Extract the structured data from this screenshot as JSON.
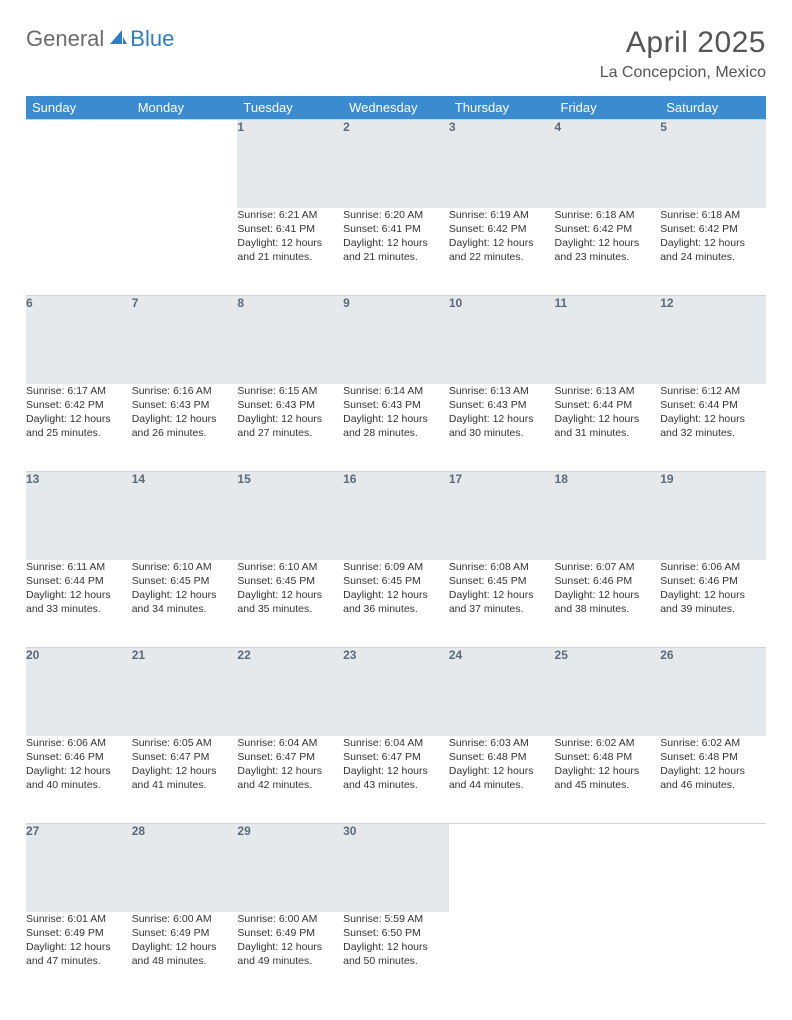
{
  "logo": {
    "gray": "General",
    "blue": "Blue"
  },
  "title": "April 2025",
  "location": "La Concepcion, Mexico",
  "colors": {
    "header_bg": "#3b8bd0",
    "header_text": "#ffffff",
    "daynum_bg": "#e6e9ec",
    "daynum_text": "#5c6a78",
    "logo_gray": "#6b6b6b",
    "logo_blue": "#2b7dc4"
  },
  "weekdays": [
    "Sunday",
    "Monday",
    "Tuesday",
    "Wednesday",
    "Thursday",
    "Friday",
    "Saturday"
  ],
  "weeks": [
    {
      "nums": [
        "",
        "",
        "1",
        "2",
        "3",
        "4",
        "5"
      ],
      "cells": [
        {
          "empty": true
        },
        {
          "empty": true
        },
        {
          "sunrise": "Sunrise: 6:21 AM",
          "sunset": "Sunset: 6:41 PM",
          "day1": "Daylight: 12 hours",
          "day2": "and 21 minutes."
        },
        {
          "sunrise": "Sunrise: 6:20 AM",
          "sunset": "Sunset: 6:41 PM",
          "day1": "Daylight: 12 hours",
          "day2": "and 21 minutes."
        },
        {
          "sunrise": "Sunrise: 6:19 AM",
          "sunset": "Sunset: 6:42 PM",
          "day1": "Daylight: 12 hours",
          "day2": "and 22 minutes."
        },
        {
          "sunrise": "Sunrise: 6:18 AM",
          "sunset": "Sunset: 6:42 PM",
          "day1": "Daylight: 12 hours",
          "day2": "and 23 minutes."
        },
        {
          "sunrise": "Sunrise: 6:18 AM",
          "sunset": "Sunset: 6:42 PM",
          "day1": "Daylight: 12 hours",
          "day2": "and 24 minutes."
        }
      ]
    },
    {
      "nums": [
        "6",
        "7",
        "8",
        "9",
        "10",
        "11",
        "12"
      ],
      "cells": [
        {
          "sunrise": "Sunrise: 6:17 AM",
          "sunset": "Sunset: 6:42 PM",
          "day1": "Daylight: 12 hours",
          "day2": "and 25 minutes."
        },
        {
          "sunrise": "Sunrise: 6:16 AM",
          "sunset": "Sunset: 6:43 PM",
          "day1": "Daylight: 12 hours",
          "day2": "and 26 minutes."
        },
        {
          "sunrise": "Sunrise: 6:15 AM",
          "sunset": "Sunset: 6:43 PM",
          "day1": "Daylight: 12 hours",
          "day2": "and 27 minutes."
        },
        {
          "sunrise": "Sunrise: 6:14 AM",
          "sunset": "Sunset: 6:43 PM",
          "day1": "Daylight: 12 hours",
          "day2": "and 28 minutes."
        },
        {
          "sunrise": "Sunrise: 6:13 AM",
          "sunset": "Sunset: 6:43 PM",
          "day1": "Daylight: 12 hours",
          "day2": "and 30 minutes."
        },
        {
          "sunrise": "Sunrise: 6:13 AM",
          "sunset": "Sunset: 6:44 PM",
          "day1": "Daylight: 12 hours",
          "day2": "and 31 minutes."
        },
        {
          "sunrise": "Sunrise: 6:12 AM",
          "sunset": "Sunset: 6:44 PM",
          "day1": "Daylight: 12 hours",
          "day2": "and 32 minutes."
        }
      ]
    },
    {
      "nums": [
        "13",
        "14",
        "15",
        "16",
        "17",
        "18",
        "19"
      ],
      "cells": [
        {
          "sunrise": "Sunrise: 6:11 AM",
          "sunset": "Sunset: 6:44 PM",
          "day1": "Daylight: 12 hours",
          "day2": "and 33 minutes."
        },
        {
          "sunrise": "Sunrise: 6:10 AM",
          "sunset": "Sunset: 6:45 PM",
          "day1": "Daylight: 12 hours",
          "day2": "and 34 minutes."
        },
        {
          "sunrise": "Sunrise: 6:10 AM",
          "sunset": "Sunset: 6:45 PM",
          "day1": "Daylight: 12 hours",
          "day2": "and 35 minutes."
        },
        {
          "sunrise": "Sunrise: 6:09 AM",
          "sunset": "Sunset: 6:45 PM",
          "day1": "Daylight: 12 hours",
          "day2": "and 36 minutes."
        },
        {
          "sunrise": "Sunrise: 6:08 AM",
          "sunset": "Sunset: 6:45 PM",
          "day1": "Daylight: 12 hours",
          "day2": "and 37 minutes."
        },
        {
          "sunrise": "Sunrise: 6:07 AM",
          "sunset": "Sunset: 6:46 PM",
          "day1": "Daylight: 12 hours",
          "day2": "and 38 minutes."
        },
        {
          "sunrise": "Sunrise: 6:06 AM",
          "sunset": "Sunset: 6:46 PM",
          "day1": "Daylight: 12 hours",
          "day2": "and 39 minutes."
        }
      ]
    },
    {
      "nums": [
        "20",
        "21",
        "22",
        "23",
        "24",
        "25",
        "26"
      ],
      "cells": [
        {
          "sunrise": "Sunrise: 6:06 AM",
          "sunset": "Sunset: 6:46 PM",
          "day1": "Daylight: 12 hours",
          "day2": "and 40 minutes."
        },
        {
          "sunrise": "Sunrise: 6:05 AM",
          "sunset": "Sunset: 6:47 PM",
          "day1": "Daylight: 12 hours",
          "day2": "and 41 minutes."
        },
        {
          "sunrise": "Sunrise: 6:04 AM",
          "sunset": "Sunset: 6:47 PM",
          "day1": "Daylight: 12 hours",
          "day2": "and 42 minutes."
        },
        {
          "sunrise": "Sunrise: 6:04 AM",
          "sunset": "Sunset: 6:47 PM",
          "day1": "Daylight: 12 hours",
          "day2": "and 43 minutes."
        },
        {
          "sunrise": "Sunrise: 6:03 AM",
          "sunset": "Sunset: 6:48 PM",
          "day1": "Daylight: 12 hours",
          "day2": "and 44 minutes."
        },
        {
          "sunrise": "Sunrise: 6:02 AM",
          "sunset": "Sunset: 6:48 PM",
          "day1": "Daylight: 12 hours",
          "day2": "and 45 minutes."
        },
        {
          "sunrise": "Sunrise: 6:02 AM",
          "sunset": "Sunset: 6:48 PM",
          "day1": "Daylight: 12 hours",
          "day2": "and 46 minutes."
        }
      ]
    },
    {
      "nums": [
        "27",
        "28",
        "29",
        "30",
        "",
        "",
        ""
      ],
      "cells": [
        {
          "sunrise": "Sunrise: 6:01 AM",
          "sunset": "Sunset: 6:49 PM",
          "day1": "Daylight: 12 hours",
          "day2": "and 47 minutes."
        },
        {
          "sunrise": "Sunrise: 6:00 AM",
          "sunset": "Sunset: 6:49 PM",
          "day1": "Daylight: 12 hours",
          "day2": "and 48 minutes."
        },
        {
          "sunrise": "Sunrise: 6:00 AM",
          "sunset": "Sunset: 6:49 PM",
          "day1": "Daylight: 12 hours",
          "day2": "and 49 minutes."
        },
        {
          "sunrise": "Sunrise: 5:59 AM",
          "sunset": "Sunset: 6:50 PM",
          "day1": "Daylight: 12 hours",
          "day2": "and 50 minutes."
        },
        {
          "empty": true
        },
        {
          "empty": true
        },
        {
          "empty": true
        }
      ]
    }
  ]
}
